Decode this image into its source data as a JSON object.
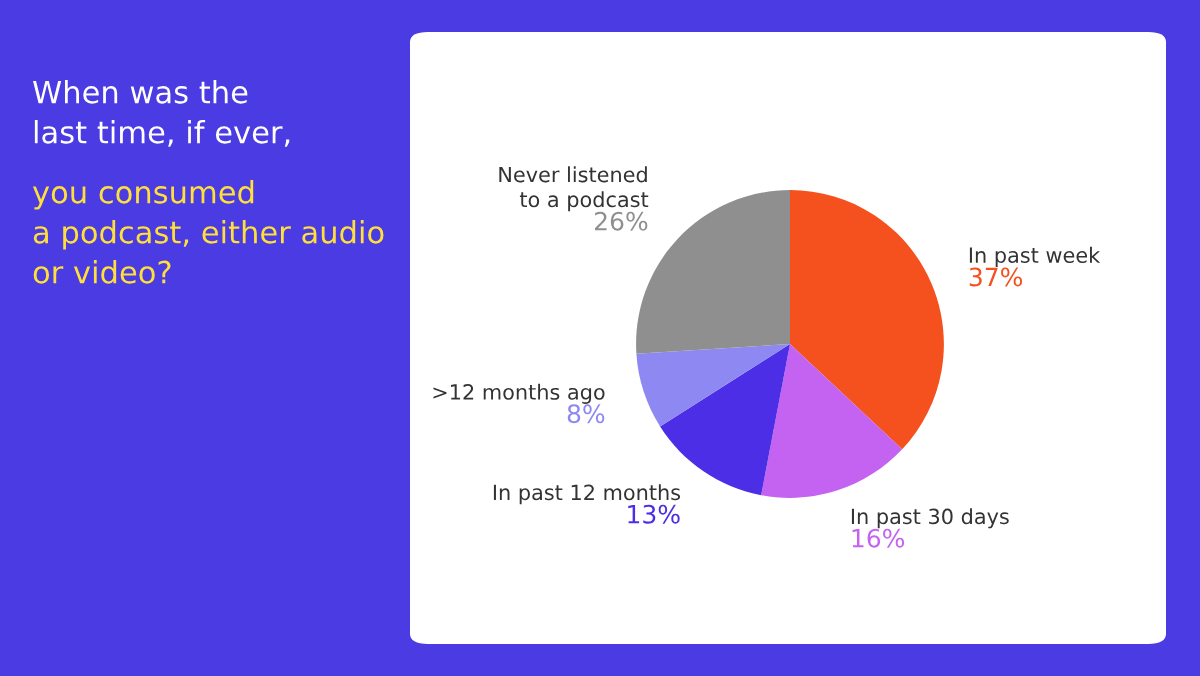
{
  "chart_data": {
    "type": "pie",
    "title": "When was the\nlast time, if ever,",
    "subtitle": "you consumed\na podcast, either audio\nor video?",
    "categories": [
      "In past week",
      "In past 30 days",
      "In past 12 months",
      ">12 months ago",
      "Never listened\nto a podcast"
    ],
    "values": [
      37,
      16,
      13,
      8,
      26
    ],
    "value_labels": [
      "37%",
      "16%",
      "13%",
      "8%",
      "26%"
    ],
    "colors": [
      "#f4511e",
      "#c462f2",
      "#4b2ee6",
      "#8e88f2",
      "#8f8f8f"
    ]
  }
}
